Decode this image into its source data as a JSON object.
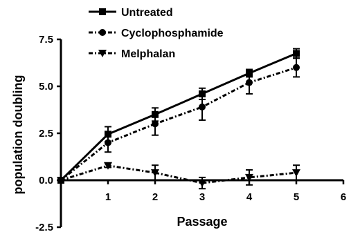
{
  "chart_data": {
    "type": "line",
    "title": "",
    "xlabel": "Passage",
    "ylabel": "population doubling",
    "xlim": [
      0,
      6
    ],
    "ylim": [
      -2.5,
      7.5
    ],
    "x_ticks": [
      1,
      2,
      3,
      4,
      5,
      6
    ],
    "x_tick_labels": [
      "1",
      "2",
      "3",
      "4",
      "5",
      "6"
    ],
    "y_ticks": [
      -2.5,
      0.0,
      2.5,
      5.0,
      7.5
    ],
    "y_tick_labels": [
      "-2.5",
      "0.0",
      "2.5",
      "5.0",
      "7.5"
    ],
    "grid": false,
    "legend_position": "top-left",
    "series": [
      {
        "name": "Untreated",
        "x": [
          0,
          1,
          2,
          3,
          4,
          5
        ],
        "y": [
          0,
          2.45,
          3.5,
          4.6,
          5.7,
          6.75
        ],
        "error": [
          0,
          0.4,
          0.35,
          0.3,
          0.2,
          0.25
        ],
        "marker": "square",
        "line_style": "solid",
        "color": "#000000"
      },
      {
        "name": "Cyclophosphamide",
        "x": [
          0,
          1,
          2,
          3,
          4,
          5
        ],
        "y": [
          0,
          2.0,
          3.0,
          3.9,
          5.2,
          6.0
        ],
        "error": [
          0,
          0.5,
          0.6,
          0.7,
          0.6,
          0.5
        ],
        "marker": "circle",
        "line_style": "dash-dot",
        "color": "#000000"
      },
      {
        "name": "Melphalan",
        "x": [
          0,
          1,
          2,
          3,
          4,
          5
        ],
        "y": [
          0,
          0.78,
          0.4,
          -0.15,
          0.15,
          0.4
        ],
        "error": [
          0,
          0.1,
          0.4,
          0.3,
          0.4,
          0.4
        ],
        "marker": "triangle-down",
        "line_style": "dash-dot",
        "color": "#000000"
      }
    ]
  }
}
